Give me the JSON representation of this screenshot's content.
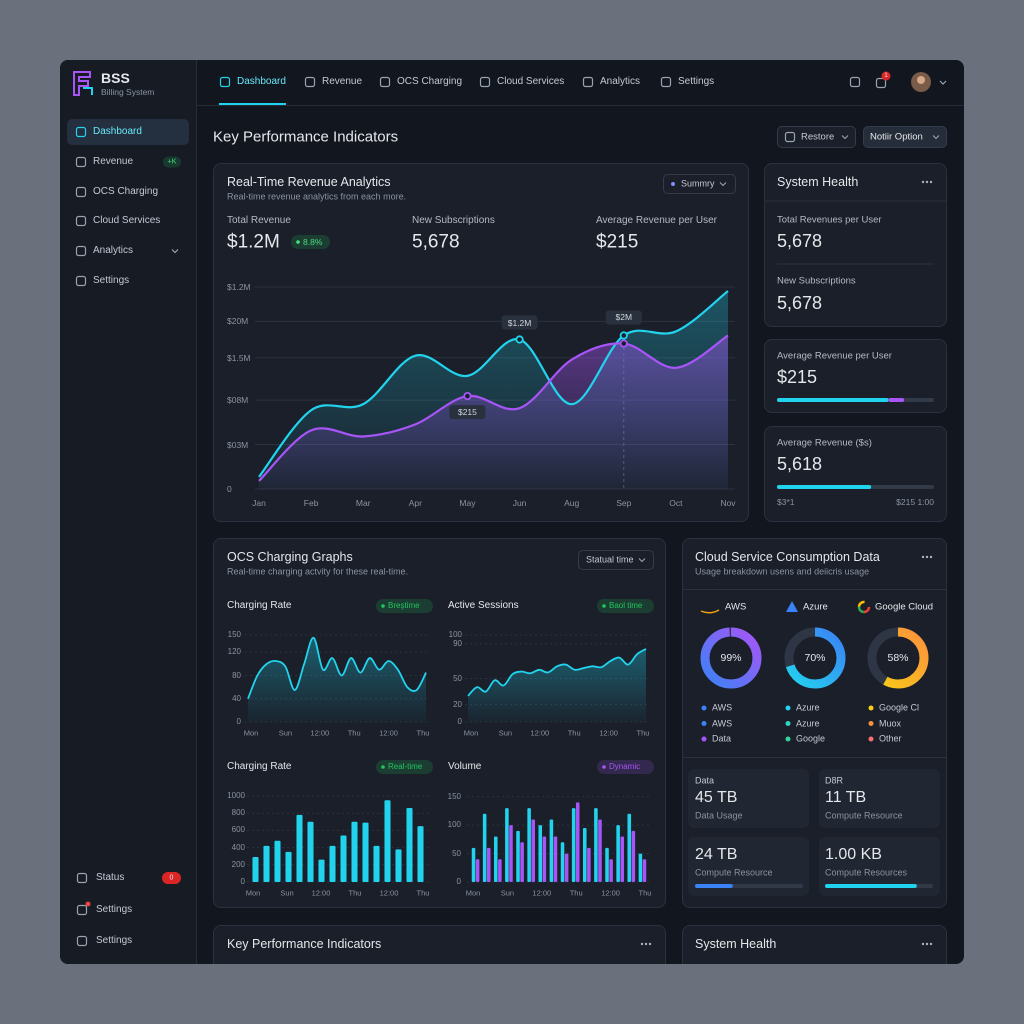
{
  "brand": {
    "name": "BSS",
    "subtitle": "Billing System"
  },
  "sidebar": {
    "items": [
      {
        "label": "Dashboard"
      },
      {
        "label": "Revenue",
        "badge": "+K"
      },
      {
        "label": "OCS Charging"
      },
      {
        "label": "Cloud Services"
      },
      {
        "label": "Analytics"
      },
      {
        "label": "Settings"
      }
    ],
    "footer": [
      {
        "label": "Status",
        "badge": "0"
      },
      {
        "label": "Settings"
      },
      {
        "label": "Settings"
      }
    ]
  },
  "nav": {
    "tabs": [
      "Dashboard",
      "Revenue",
      "OCS Charging",
      "Cloud Services",
      "Analytics",
      "Settings"
    ],
    "notifications": "1"
  },
  "header": {
    "title": "Key Performance Indicators",
    "buttons": [
      "Restore",
      "Notiir Option"
    ]
  },
  "revenue": {
    "title": "Real-Time Revenue Analytics",
    "subtitle": "Real-time revenue analytics from each more.",
    "dropdown": "Summry",
    "metrics": [
      {
        "label": "Total Revenue",
        "value": "$1.2M",
        "badge": "8.8%"
      },
      {
        "label": "New Subscriptions",
        "value": "5,678"
      },
      {
        "label": "Average Revenue per User",
        "value": "$215"
      }
    ],
    "chart": {
      "type": "line",
      "categories": [
        "Jan",
        "Feb",
        "Mar",
        "Apr",
        "May",
        "Jun",
        "Aug",
        "Sep",
        "Oct",
        "Nov"
      ],
      "ylim": [
        0,
        5
      ],
      "yticks": [
        0,
        {
          "value": 1.1,
          "label": "$03M"
        },
        {
          "value": 2.2,
          "label": "$08M"
        },
        {
          "value": 3.25,
          "label": "$1.5M"
        },
        {
          "value": 4.15,
          "label": "$20M"
        },
        {
          "value": 5,
          "label": "$1.2M"
        }
      ],
      "grid": true,
      "series": [
        {
          "color": "#22d3ee",
          "values": [
            0.3,
            1.95,
            2.1,
            3.3,
            2.8,
            3.7,
            2.1,
            3.8,
            3.9,
            4.9
          ]
        },
        {
          "color": "#a855f7",
          "values": [
            0.2,
            1.45,
            1.3,
            1.6,
            2.3,
            2.0,
            3.2,
            3.6,
            3.0,
            3.8
          ]
        }
      ],
      "annotations": [
        "$1.2M",
        "$2M",
        "$215"
      ]
    }
  },
  "system_health": {
    "title": "System Health",
    "items": [
      {
        "label": "Total Revenues per User",
        "value": "5,678"
      },
      {
        "label": "New Subscriptions",
        "value": "5,678"
      }
    ]
  },
  "arpu": {
    "label": "Average Revenue per User",
    "value": "$215",
    "progress": [
      {
        "value": 71,
        "color": "#22d3ee"
      },
      {
        "value": 10,
        "color": "#a855f7"
      }
    ]
  },
  "avg_revenue": {
    "label": "Average Revenue ($s)",
    "value": "5,618",
    "progress": [
      {
        "value": 60,
        "color": "#22d3ee"
      }
    ],
    "min_label": "$3*1",
    "max_label": "$215 1:00"
  },
  "ocs": {
    "title": "OCS Charging Graphs",
    "subtitle": "Real-time charging actvity for these real-time.",
    "dropdown": "Statual time",
    "charts": [
      {
        "type": "line",
        "title": "Charging Rate",
        "badge": "Breştime",
        "badge_color": "#22c55e",
        "color": "#22d3ee",
        "ylim": [
          0,
          160
        ],
        "yticks": [
          0,
          40,
          80,
          120,
          150
        ],
        "xlabels": [
          "Mon",
          "Sun",
          "12:00",
          "Thu",
          "12:00",
          "Thu"
        ],
        "values": [
          40,
          80,
          100,
          105,
          95,
          55,
          100,
          145,
          90,
          110,
          80,
          110,
          85,
          110,
          90,
          105,
          90,
          60,
          55,
          85
        ]
      },
      {
        "type": "line",
        "title": "Active Sessions",
        "badge": "Baol time",
        "badge_color": "#22c55e",
        "color": "#22d3ee",
        "ylim": [
          0,
          100
        ],
        "yticks": [
          0,
          20,
          50,
          90,
          100
        ],
        "xlabels": [
          "Mon",
          "Sun",
          "12:00",
          "Thu",
          "12:00",
          "Thu"
        ],
        "values": [
          30,
          40,
          35,
          48,
          42,
          55,
          58,
          56,
          60,
          57,
          64,
          66,
          60,
          62,
          64,
          63,
          70,
          74,
          66,
          78,
          84
        ]
      },
      {
        "type": "bar",
        "title": "Charging Rate",
        "badge": "Real-time",
        "badge_color": "#22c55e",
        "color": "#22d3ee",
        "ylim": [
          0,
          1000
        ],
        "yticks": [
          0,
          200,
          400,
          600,
          800,
          1000
        ],
        "xlabels": [
          "Mon",
          "Sun",
          "12:00",
          "Thu",
          "12:00",
          "Thu"
        ],
        "values": [
          290,
          420,
          480,
          350,
          780,
          700,
          260,
          420,
          540,
          700,
          690,
          420,
          950,
          380,
          860,
          650
        ]
      },
      {
        "type": "bar",
        "title": "Volume",
        "badge": "Dynamic",
        "badge_color": "#a855f7",
        "ylim": [
          0,
          160
        ],
        "yticks": [
          0,
          50,
          100,
          150
        ],
        "xlabels": [
          "Mon",
          "Sun",
          "12:00",
          "Thu",
          "12:00",
          "Thu"
        ],
        "series": [
          {
            "color": "#22d3ee",
            "values": [
              60,
              120,
              80,
              130,
              90,
              130,
              100,
              110,
              70,
              130,
              95,
              130,
              60,
              100,
              120,
              50
            ]
          },
          {
            "color": "#a855f7",
            "values": [
              40,
              60,
              40,
              100,
              70,
              110,
              80,
              80,
              50,
              140,
              60,
              110,
              40,
              80,
              90,
              40
            ]
          }
        ]
      }
    ]
  },
  "cloud": {
    "title": "Cloud Service Consumption Data",
    "subtitle": "Usage breakdown usens and deiicris usage",
    "providers": [
      {
        "name": "AWS",
        "value": 99,
        "value_label": "99%",
        "colors": [
          "#3b82f6",
          "#a855f7"
        ],
        "legend": [
          {
            "label": "AWS",
            "color": "#3b82f6"
          },
          {
            "label": "AWS",
            "color": "#3b82f6"
          },
          {
            "label": "Data",
            "color": "#a855f7"
          }
        ]
      },
      {
        "name": "Azure",
        "value": 70,
        "value_label": "70%",
        "colors": [
          "#22d3ee",
          "#3b82f6"
        ],
        "legend": [
          {
            "label": "Azure",
            "color": "#22d3ee"
          },
          {
            "label": "Azure",
            "color": "#2dd4bf"
          },
          {
            "label": "Google",
            "color": "#34d399"
          }
        ]
      },
      {
        "name": "Google Cloud",
        "value": 58,
        "value_label": "58%",
        "colors": [
          "#facc15",
          "#fb923c"
        ],
        "legend": [
          {
            "label": "Google Cl",
            "color": "#facc15"
          },
          {
            "label": "Muox",
            "color": "#fb923c"
          },
          {
            "label": "Other",
            "color": "#f87171"
          }
        ]
      }
    ],
    "stats": [
      {
        "label": "Data",
        "value": "45 TB",
        "caption": "Data Usage"
      },
      {
        "label": "D8R",
        "value": "11 TB",
        "caption": "Compute Resource"
      },
      {
        "value": "24 TB",
        "caption": "Compute Resource",
        "progress": {
          "value": 35,
          "color": "#3b82f6"
        }
      },
      {
        "value": "1.00 KB",
        "caption": "Compute Resources",
        "progress": {
          "value": 85,
          "color": "#22d3ee"
        }
      }
    ]
  },
  "bottom": {
    "left": "Key Performance Indicators",
    "right": "System Health"
  }
}
